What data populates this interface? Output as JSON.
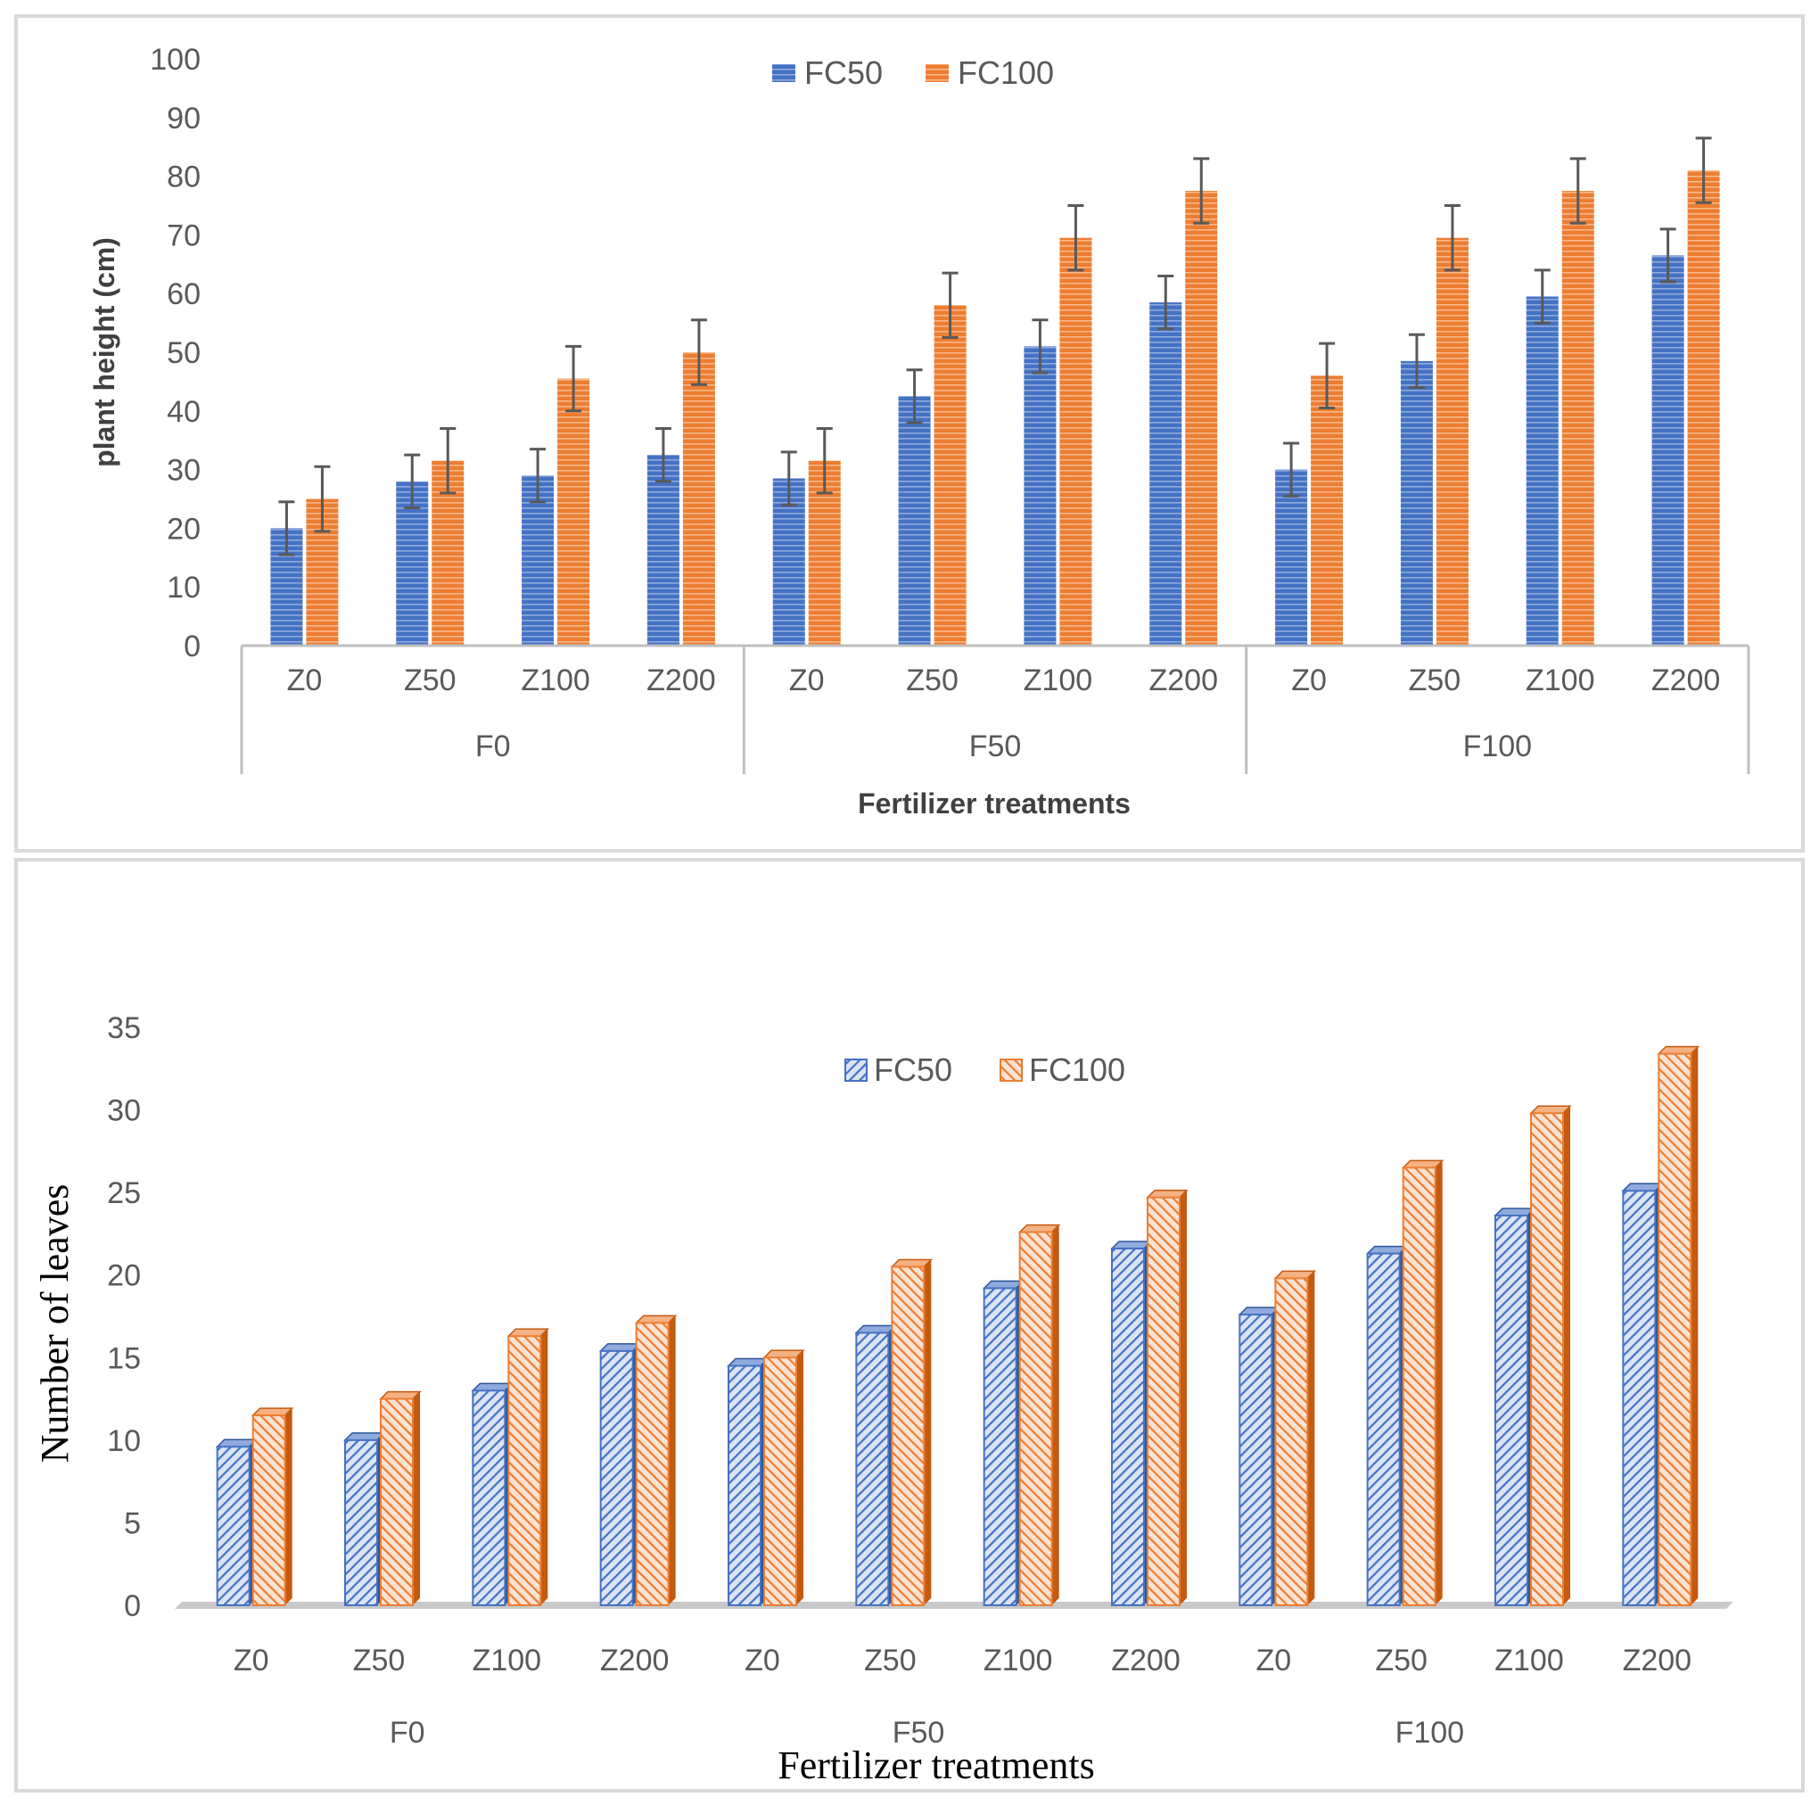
{
  "chart_data": [
    {
      "type": "bar",
      "title": "",
      "xlabel": "Fertilizer treatments",
      "ylabel": "plant height (cm)",
      "ylim": [
        0,
        100
      ],
      "yticks": [
        "0",
        "10",
        "20",
        "30",
        "40",
        "50",
        "60",
        "70",
        "80",
        "90",
        "100"
      ],
      "groups": [
        "F0",
        "F50",
        "F100"
      ],
      "categories": [
        "Z0",
        "Z50",
        "Z100",
        "Z200",
        "Z0",
        "Z50",
        "Z100",
        "Z200",
        "Z0",
        "Z50",
        "Z100",
        "Z200"
      ],
      "legend_position": "top-center",
      "colors": {
        "FC50": "#4472c4",
        "FC100": "#ed7d31",
        "error": "#595959"
      },
      "series": [
        {
          "name": "FC50",
          "values": [
            20,
            28,
            29,
            32.5,
            28.5,
            42.5,
            51,
            58.5,
            30,
            48.5,
            59.5,
            66.5
          ],
          "errors": [
            4.5,
            4.5,
            4.5,
            4.5,
            4.5,
            4.5,
            4.5,
            4.5,
            4.5,
            4.5,
            4.5,
            4.5
          ]
        },
        {
          "name": "FC100",
          "values": [
            25,
            31.5,
            45.5,
            50,
            31.5,
            58,
            69.5,
            77.5,
            46,
            69.5,
            77.5,
            81
          ],
          "errors": [
            5.5,
            5.5,
            5.5,
            5.5,
            5.5,
            5.5,
            5.5,
            5.5,
            5.5,
            5.5,
            5.5,
            5.5
          ]
        }
      ]
    },
    {
      "type": "bar",
      "title": "",
      "xlabel": "Fertilizer treatments",
      "ylabel": "Number of leaves",
      "ylim": [
        0,
        35
      ],
      "yticks": [
        "0",
        "5",
        "10",
        "15",
        "20",
        "25",
        "30",
        "35"
      ],
      "groups": [
        "F0",
        "F50",
        "F100"
      ],
      "categories": [
        "Z0",
        "Z50",
        "Z100",
        "Z200",
        "Z0",
        "Z50",
        "Z100",
        "Z200",
        "Z0",
        "Z50",
        "Z100",
        "Z200"
      ],
      "legend_position": "top-center",
      "colors": {
        "FC50": "#4472c4",
        "FC100": "#ed7d31",
        "floor": "#c9c9c9"
      },
      "series": [
        {
          "name": "FC50",
          "values": [
            9.6,
            10,
            13,
            15.4,
            14.5,
            16.5,
            19.2,
            21.6,
            17.6,
            21.3,
            23.6,
            25.1
          ]
        },
        {
          "name": "FC100",
          "values": [
            11.5,
            12.5,
            16.3,
            17.1,
            15,
            20.5,
            22.6,
            24.7,
            19.8,
            26.5,
            29.8,
            33.4
          ]
        }
      ]
    }
  ]
}
